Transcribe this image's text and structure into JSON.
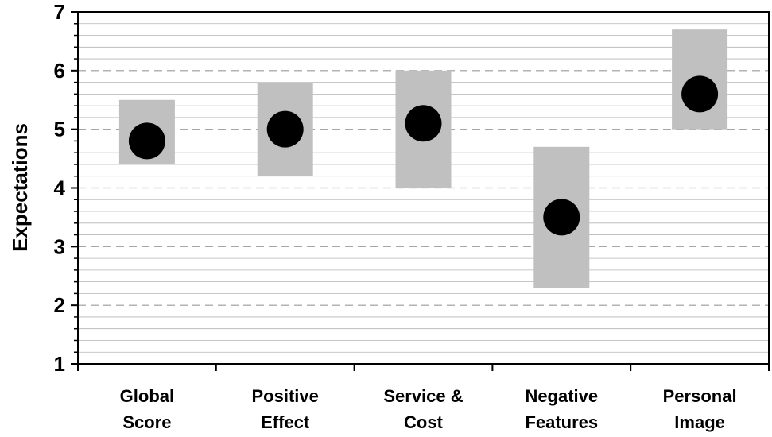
{
  "chart_data": {
    "type": "range-dot",
    "title": "",
    "ylabel": "Expectations",
    "ylim": [
      1,
      7
    ],
    "yticks": [
      "1",
      "2",
      "3",
      "4",
      "5",
      "6",
      "7"
    ],
    "categories": [
      [
        "Global",
        "Score"
      ],
      [
        "Positive",
        "Effect"
      ],
      [
        "Service &",
        "Cost"
      ],
      [
        "Negative",
        "Features"
      ],
      [
        "Personal",
        "Image"
      ]
    ],
    "series": [
      {
        "name": "",
        "type": "range",
        "low": [
          4.4,
          4.2,
          4.0,
          2.3,
          5.0
        ],
        "high": [
          5.5,
          5.8,
          6.0,
          4.7,
          6.7
        ]
      },
      {
        "name": "",
        "type": "point",
        "values": [
          4.8,
          5.0,
          5.1,
          3.5,
          5.6
        ]
      }
    ],
    "colors": {
      "range": "#c0c0c0",
      "point": "#000000",
      "gridline": "#b4b4b4",
      "major_gridline": "#9a9a9a"
    },
    "grid": true
  }
}
